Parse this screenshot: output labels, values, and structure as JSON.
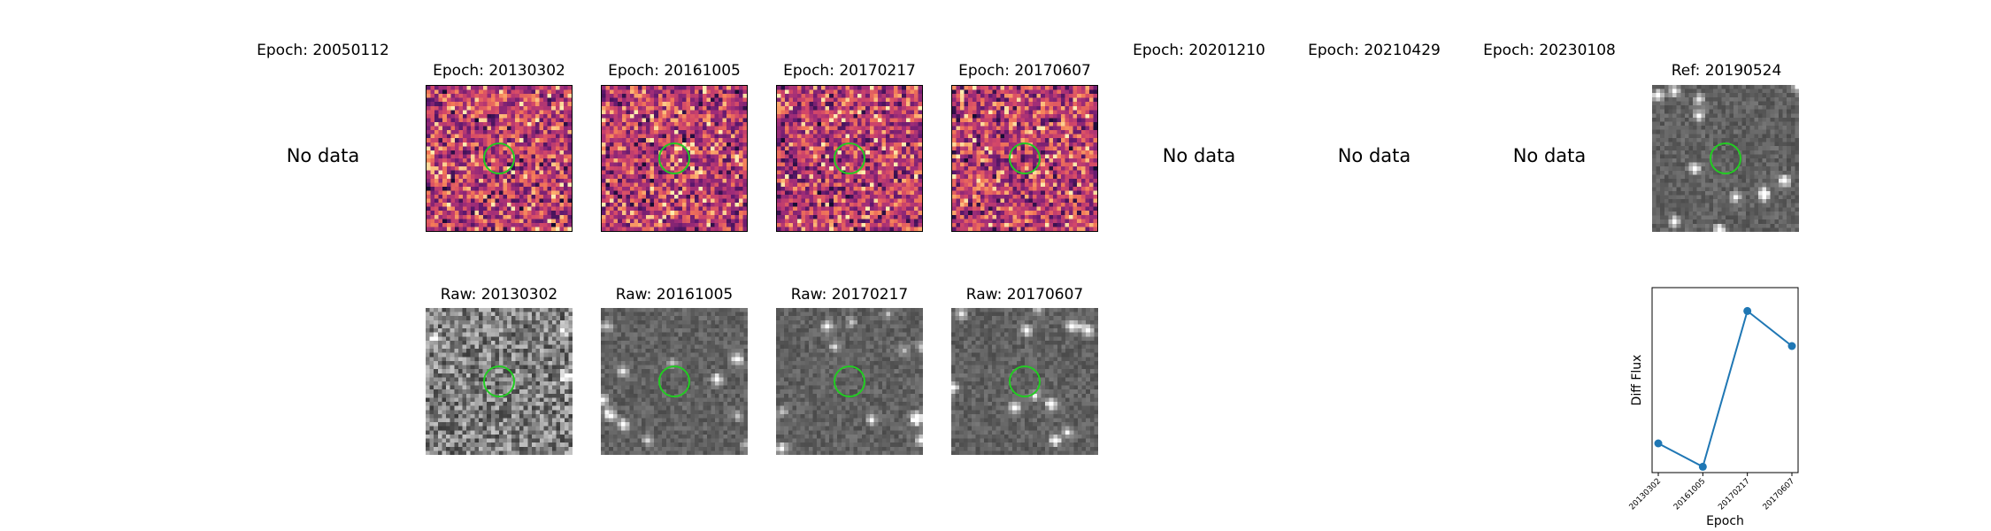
{
  "epochs": [
    {
      "title": "Epoch: 20050112",
      "has_data": false,
      "no_data_label": "No data"
    },
    {
      "title": "Epoch: 20130302",
      "has_data": true,
      "raw_title": "Raw: 20130302"
    },
    {
      "title": "Epoch: 20161005",
      "has_data": true,
      "raw_title": "Raw: 20161005"
    },
    {
      "title": "Epoch: 20170217",
      "has_data": true,
      "raw_title": "Raw: 20170217"
    },
    {
      "title": "Epoch: 20170607",
      "has_data": true,
      "raw_title": "Raw: 20170607"
    },
    {
      "title": "Epoch: 20201210",
      "has_data": false,
      "no_data_label": "No data"
    },
    {
      "title": "Epoch: 20210429",
      "has_data": false,
      "no_data_label": "No data"
    },
    {
      "title": "Epoch: 20230108",
      "has_data": false,
      "no_data_label": "No data"
    }
  ],
  "reference": {
    "title": "Ref: 20190524"
  },
  "colors": {
    "circle": "#22cc22",
    "line": "#1f77b4",
    "diff_colormap": "magma",
    "raw_colormap": "gray"
  },
  "chart_data": {
    "type": "line",
    "title": "",
    "xlabel": "Epoch",
    "ylabel": "Diff Flux",
    "categories": [
      "20130302",
      "20161005",
      "20170217",
      "20170607"
    ],
    "values": [
      0.12,
      0.0,
      0.8,
      0.62
    ],
    "ylim": [
      -0.03,
      0.92
    ],
    "grid": false,
    "y_tick_labels_shown": false
  }
}
